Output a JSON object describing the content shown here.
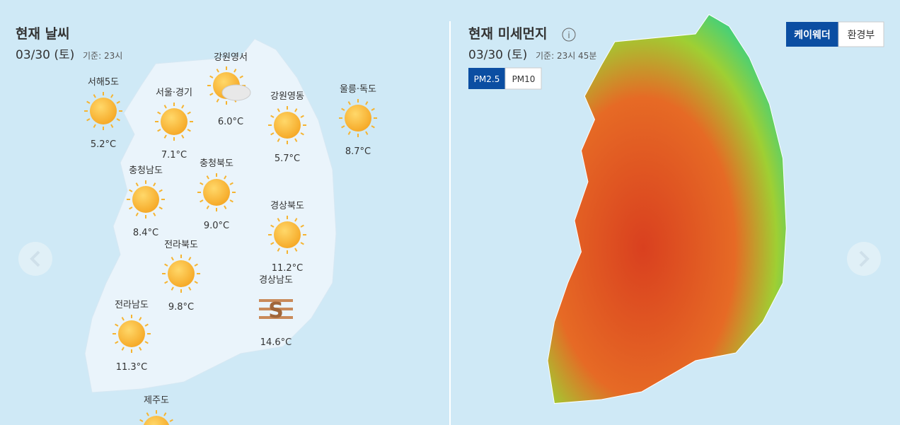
{
  "weather": {
    "title": "현재 날씨",
    "date": "03/30 (토)",
    "basis": "기준: 23시",
    "regions": [
      {
        "name": "서해5도",
        "temp": "5.2°C"
      },
      {
        "name": "서울·경기",
        "temp": "7.1°C"
      },
      {
        "name": "강원영서",
        "temp": "6.0°C"
      },
      {
        "name": "강원영동",
        "temp": "5.7°C"
      },
      {
        "name": "울릉·독도",
        "temp": "8.7°C"
      },
      {
        "name": "충청남도",
        "temp": "8.4°C"
      },
      {
        "name": "충청북도",
        "temp": "9.0°C"
      },
      {
        "name": "경상북도",
        "temp": "11.2°C"
      },
      {
        "name": "전라북도",
        "temp": "9.8°C"
      },
      {
        "name": "경상남도",
        "temp": "14.6°C"
      },
      {
        "name": "전라남도",
        "temp": "11.3°C"
      },
      {
        "name": "제주도"
      }
    ]
  },
  "dust": {
    "title": "현재 미세먼지",
    "date": "03/30 (토)",
    "basis": "기준: 23시 45분",
    "tabs": [
      "PM2.5",
      "PM10"
    ],
    "sources": [
      "케이웨더",
      "환경부"
    ]
  }
}
